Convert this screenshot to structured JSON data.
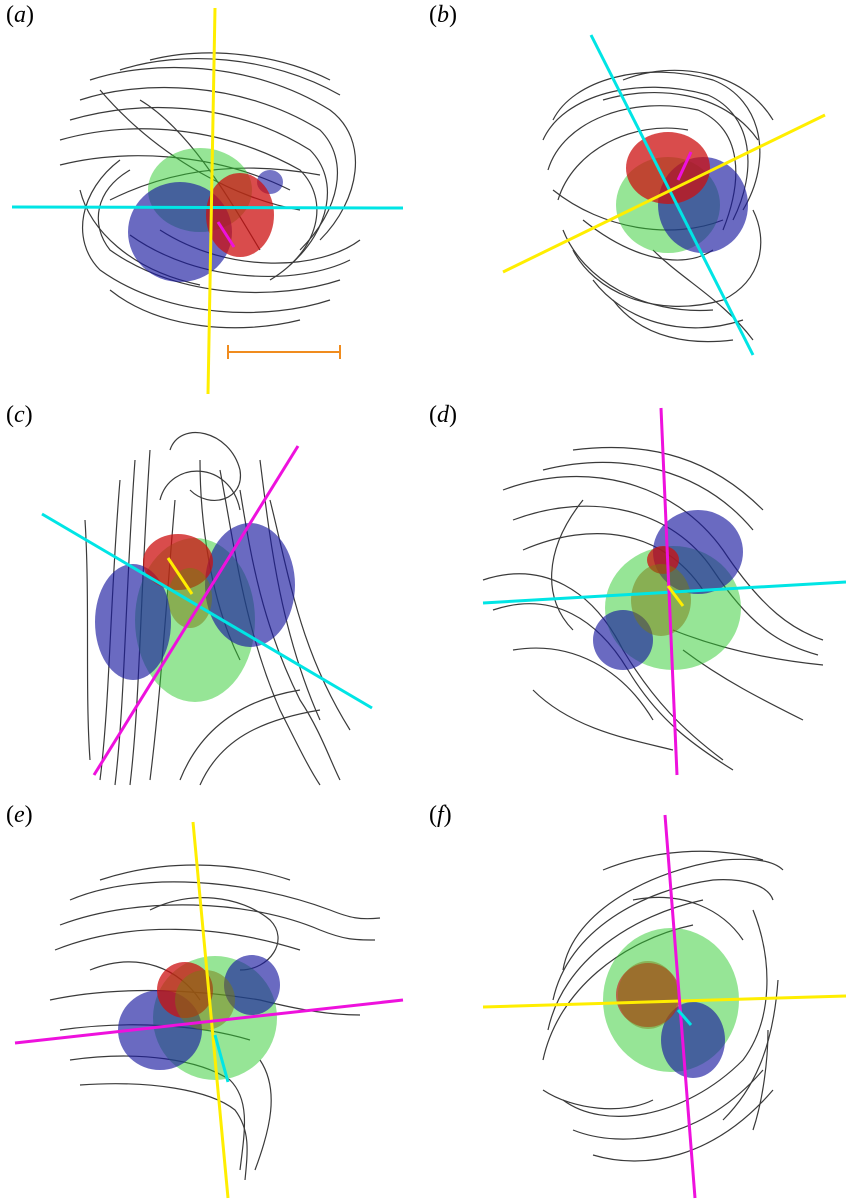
{
  "figure": {
    "panels": [
      {
        "id": "a",
        "label_open": "(",
        "letter": "a",
        "label_close": ")",
        "has_scale_bar": true
      },
      {
        "id": "b",
        "label_open": "(",
        "letter": "b",
        "label_close": ")",
        "has_scale_bar": false
      },
      {
        "id": "c",
        "label_open": "(",
        "letter": "c",
        "label_close": ")",
        "has_scale_bar": false
      },
      {
        "id": "d",
        "label_open": "(",
        "letter": "d",
        "label_close": ")",
        "has_scale_bar": false
      },
      {
        "id": "e",
        "label_open": "(",
        "letter": "e",
        "label_close": ")",
        "has_scale_bar": false
      },
      {
        "id": "f",
        "label_open": "(",
        "letter": "f",
        "label_close": ")",
        "has_scale_bar": false
      }
    ],
    "colors": {
      "streamline": "#3a3a3a",
      "arrowhead": "#555555",
      "red_lobe": "#cc1010",
      "blue_lobe": "#1a1aa0",
      "green_lobe": "#2ecc2e",
      "axis_yellow": "#ffee00",
      "axis_cyan": "#00e5e5",
      "axis_magenta": "#ee11dd",
      "scale_bar": "#f08c1e"
    }
  }
}
